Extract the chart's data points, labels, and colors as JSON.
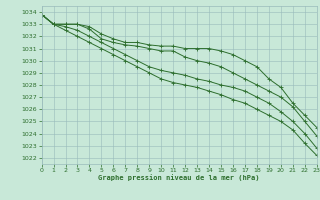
{
  "title": "Graphe pression niveau de la mer (hPa)",
  "bg_color": "#c8e8d8",
  "grid_color": "#99bbbb",
  "line_color": "#2d6e2d",
  "ylim": [
    1021.5,
    1034.5
  ],
  "xlim": [
    0,
    23
  ],
  "yticks": [
    1022,
    1023,
    1024,
    1025,
    1026,
    1027,
    1028,
    1029,
    1030,
    1031,
    1032,
    1033,
    1034
  ],
  "xticks": [
    0,
    1,
    2,
    3,
    4,
    5,
    6,
    7,
    8,
    9,
    10,
    11,
    12,
    13,
    14,
    15,
    16,
    17,
    18,
    19,
    20,
    21,
    22,
    23
  ],
  "series": [
    [
      1033.8,
      1033.0,
      1033.0,
      1033.0,
      1032.8,
      1032.2,
      1031.8,
      1031.5,
      1031.5,
      1031.3,
      1031.2,
      1031.2,
      1031.0,
      1031.0,
      1031.0,
      1030.8,
      1030.5,
      1030.0,
      1029.5,
      1028.5,
      1027.8,
      1026.5,
      1025.5,
      1024.5
    ],
    [
      1033.8,
      1033.0,
      1033.0,
      1033.0,
      1032.6,
      1031.8,
      1031.5,
      1031.3,
      1031.2,
      1031.0,
      1030.8,
      1030.8,
      1030.3,
      1030.0,
      1029.8,
      1029.5,
      1029.0,
      1028.5,
      1028.0,
      1027.5,
      1027.0,
      1026.2,
      1025.0,
      1023.8
    ],
    [
      1033.8,
      1033.0,
      1032.8,
      1032.5,
      1032.0,
      1031.5,
      1031.0,
      1030.5,
      1030.0,
      1029.5,
      1029.2,
      1029.0,
      1028.8,
      1028.5,
      1028.3,
      1028.0,
      1027.8,
      1027.5,
      1027.0,
      1026.5,
      1025.8,
      1025.0,
      1024.0,
      1022.8
    ],
    [
      1033.8,
      1033.0,
      1032.5,
      1032.0,
      1031.5,
      1031.0,
      1030.5,
      1030.0,
      1029.5,
      1029.0,
      1028.5,
      1028.2,
      1028.0,
      1027.8,
      1027.5,
      1027.2,
      1026.8,
      1026.5,
      1026.0,
      1025.5,
      1025.0,
      1024.3,
      1023.2,
      1022.2
    ]
  ]
}
